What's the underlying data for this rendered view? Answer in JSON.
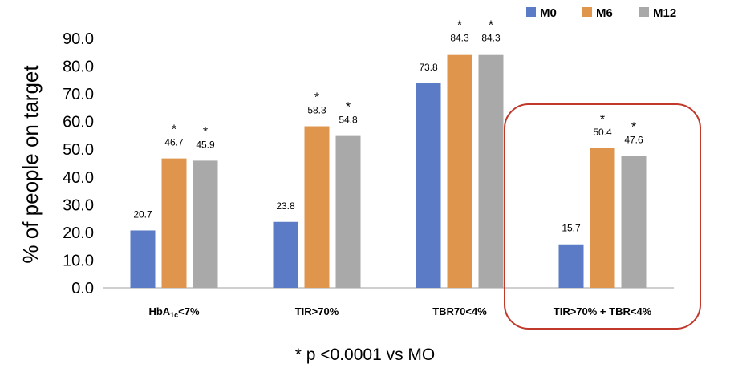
{
  "chart_data": {
    "type": "bar",
    "ylabel": "% of people on target",
    "ylim": [
      0,
      90
    ],
    "yticks": [
      "0.0",
      "10.0",
      "20.0",
      "30.0",
      "40.0",
      "50.0",
      "60.0",
      "70.0",
      "80.0",
      "90.0"
    ],
    "grid": false,
    "legend_position": "top-right",
    "categories": [
      "HbA1c<7%",
      "TIR>70%",
      "TBR70<4%",
      "TIR>70% + TBR<4%"
    ],
    "series": [
      {
        "name": "M0",
        "color": "#5B7BC6",
        "values": [
          20.7,
          23.8,
          73.8,
          15.7
        ],
        "labels": [
          "20.7",
          "23.8",
          "73.8",
          "15.7"
        ],
        "significant": [
          false,
          false,
          false,
          false
        ]
      },
      {
        "name": "M6",
        "color": "#DF954C",
        "values": [
          46.7,
          58.3,
          84.3,
          50.4
        ],
        "labels": [
          "46.7",
          "58.3",
          "84.3",
          "50.4"
        ],
        "significant": [
          true,
          true,
          true,
          true
        ]
      },
      {
        "name": "M12",
        "color": "#A9A9A9",
        "values": [
          45.9,
          54.8,
          84.3,
          47.6
        ],
        "labels": [
          "45.9",
          "54.8",
          "84.3",
          "47.6"
        ],
        "significant": [
          true,
          true,
          true,
          true
        ]
      }
    ],
    "significance_marker": "*",
    "highlighted_category": "TIR>70% + TBR<4%",
    "highlight_color": "#C0392B",
    "footnote": "* p <0.0001 vs MO"
  }
}
